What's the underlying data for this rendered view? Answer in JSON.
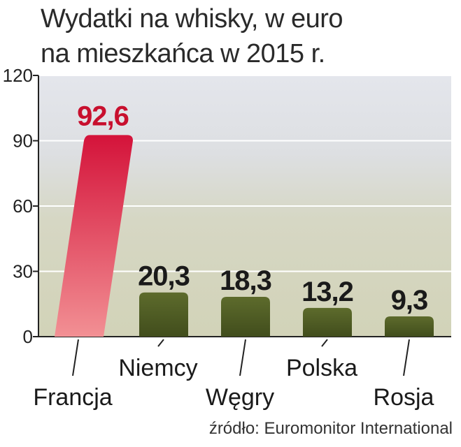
{
  "chart_data": {
    "type": "bar",
    "title": "Wydatki na whisky, w euro na mieszkańca w 2015 r.",
    "title_lines": [
      "Wydatki na whisky, w euro",
      "na mieszkańca w 2015 r."
    ],
    "categories": [
      "Francja",
      "Niemcy",
      "Węgry",
      "Polska",
      "Rosja"
    ],
    "values": [
      92.6,
      20.3,
      18.3,
      13.2,
      9.3
    ],
    "value_labels": [
      "92,6",
      "20,3",
      "18,3",
      "13,2",
      "9,3"
    ],
    "yticks": [
      0,
      30,
      60,
      90,
      120
    ],
    "ylim": [
      0,
      120
    ],
    "highlight_index": 0,
    "grid": true,
    "colors": {
      "highlight_top": "#d4133a",
      "highlight_bottom": "#f07a80",
      "bar_top": "#5d6b2c",
      "bar_bottom": "#3e4a1a",
      "band_light": "#e6e8ee",
      "band_olive": "#d3d4ba",
      "highlight_text": "#c8102e"
    }
  },
  "source": "źródło: Euromonitor International"
}
